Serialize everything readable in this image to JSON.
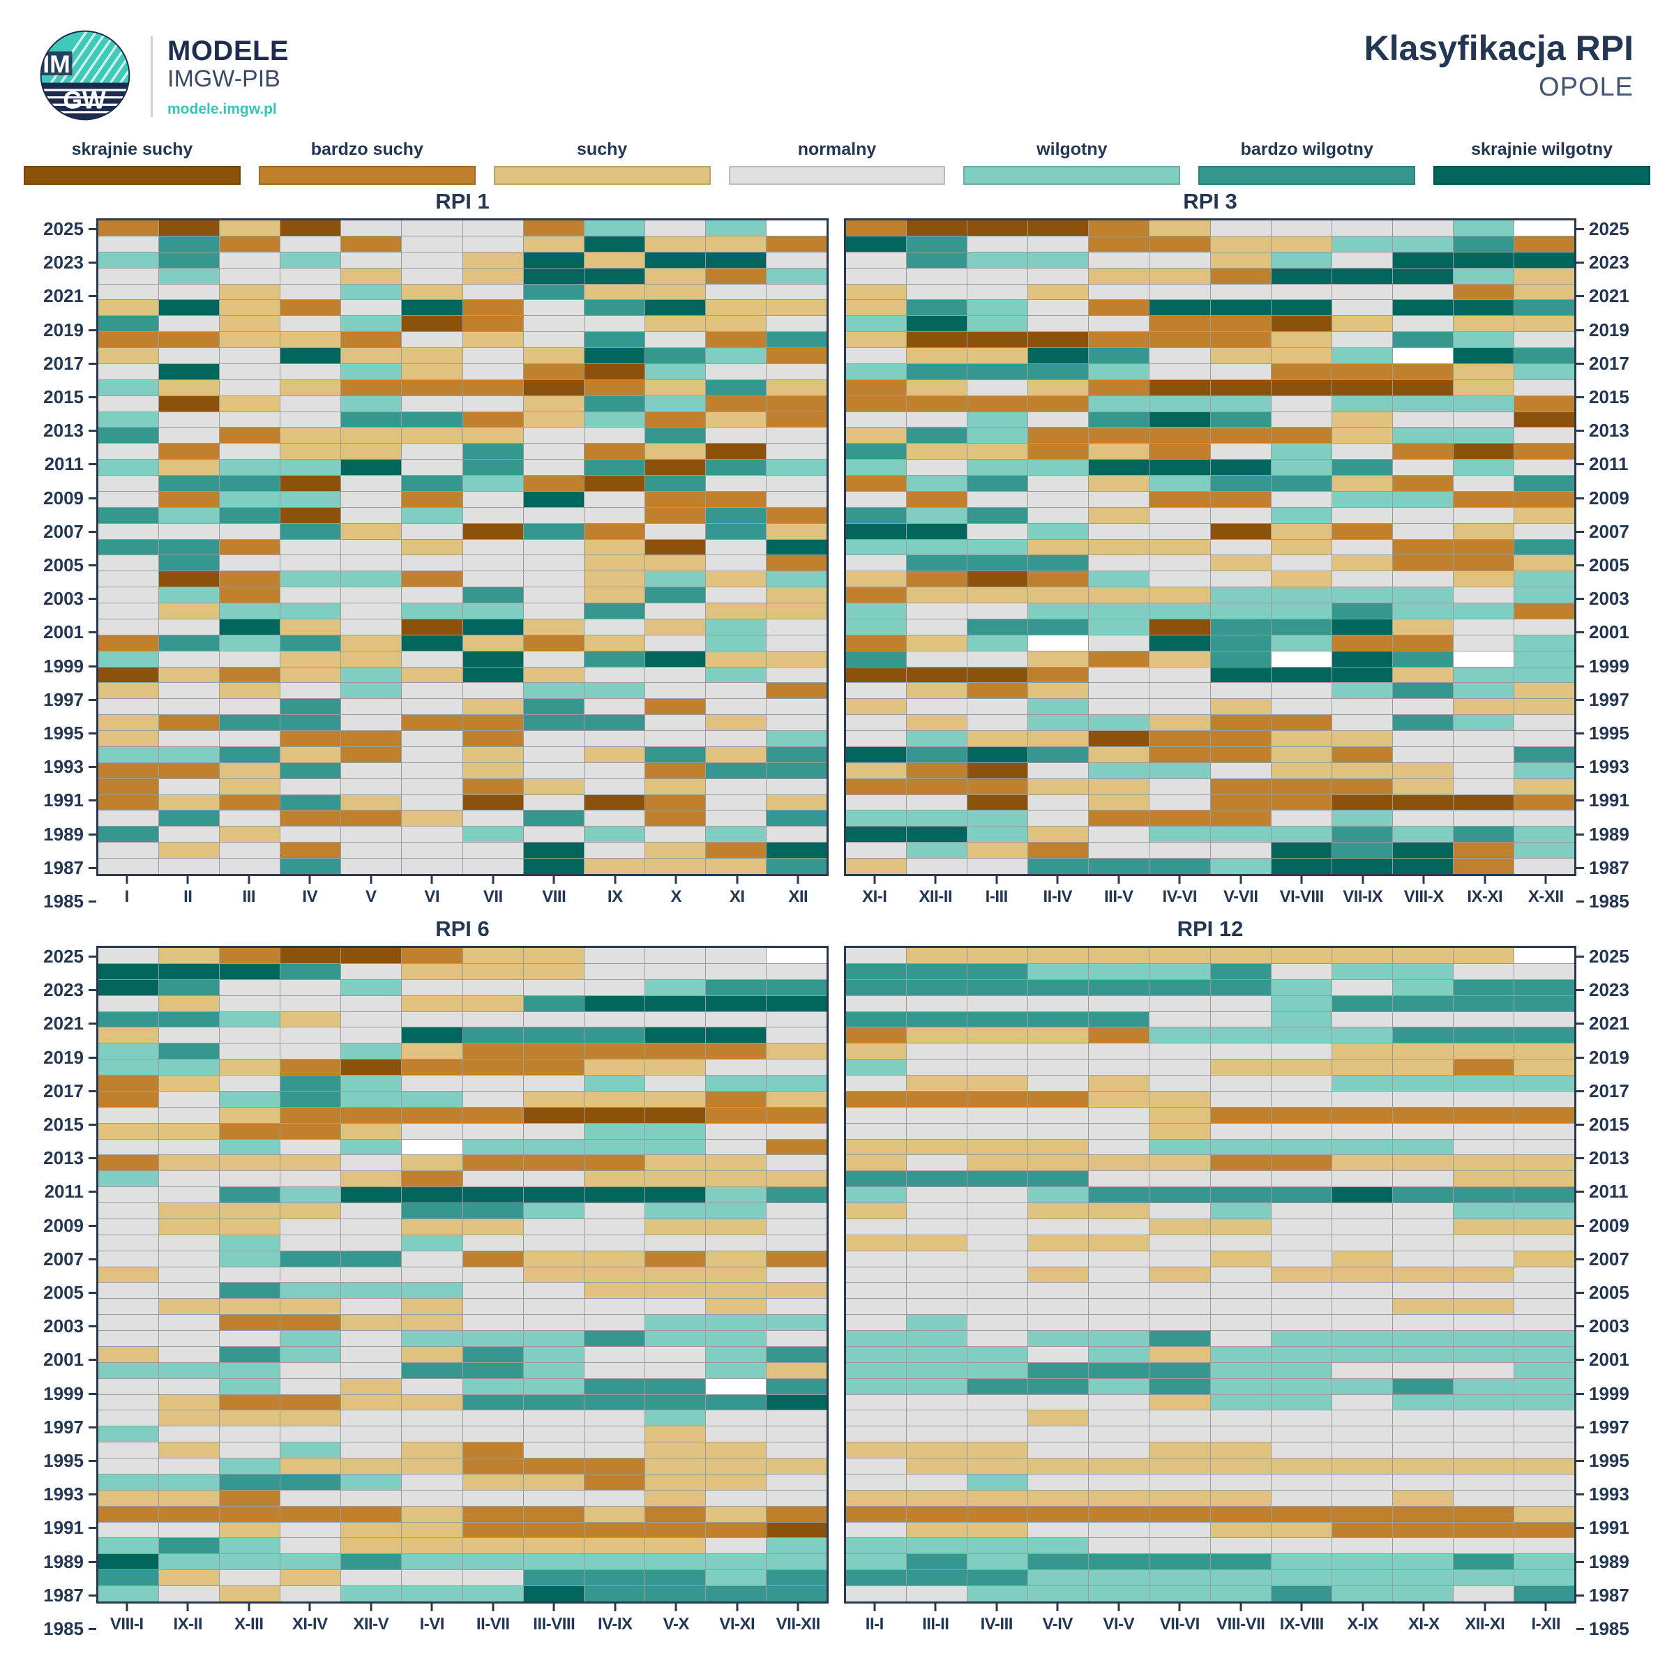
{
  "header": {
    "logo": {
      "line1": "IM",
      "line2": "GW"
    },
    "brand_title": "MODELE",
    "brand_subtitle": "IMGW-PIB",
    "brand_url": "modele.imgw.pl",
    "title": "Klasyfikacja RPI",
    "subtitle": "OPOLE"
  },
  "legend": {
    "items": [
      {
        "code": "D3",
        "label": "skrajnie suchy",
        "color": "#8C510A"
      },
      {
        "code": "D2",
        "label": "bardzo suchy",
        "color": "#BF812D"
      },
      {
        "code": "D1",
        "label": "suchy",
        "color": "#DFC27D"
      },
      {
        "code": "N",
        "label": "normalny",
        "color": "#E0E0E0"
      },
      {
        "code": "W1",
        "label": "wilgotny",
        "color": "#80CDC1"
      },
      {
        "code": "W2",
        "label": "bardzo wilgotny",
        "color": "#35978F"
      },
      {
        "code": "W3",
        "label": "skrajnie wilgotny",
        "color": "#01665E"
      }
    ]
  },
  "chart_data": {
    "type": "heatmap",
    "title": "Klasyfikacja RPI",
    "location": "OPOLE",
    "missing": {
      "code": "X",
      "color": "#FFFFFF"
    },
    "years_top_to_bottom": [
      2025,
      2024,
      2023,
      2022,
      2021,
      2020,
      2019,
      2018,
      2017,
      2016,
      2015,
      2014,
      2013,
      2012,
      2011,
      2010,
      2009,
      2008,
      2007,
      2006,
      2005,
      2004,
      2003,
      2002,
      2001,
      2000,
      1999,
      1998,
      1997,
      1996,
      1995,
      1994,
      1993,
      1992,
      1991,
      1990,
      1989,
      1988,
      1987,
      1986,
      1985
    ],
    "year_tick_labels": [
      2025,
      2023,
      2021,
      2019,
      2017,
      2015,
      2013,
      2011,
      2009,
      2007,
      2005,
      2003,
      2001,
      1999,
      1997,
      1995,
      1993,
      1991,
      1989,
      1987,
      1985
    ],
    "panels": [
      {
        "title": "RPI 1",
        "x_labels": [
          "I",
          "II",
          "III",
          "IV",
          "V",
          "VI",
          "VII",
          "VIII",
          "IX",
          "X",
          "XI",
          "XII"
        ],
        "rows": [
          "D2 D3 D1 D3 N N N D2 W1 N W1 X",
          "N W2 D2 N D2 N N D1 W3 D1 D1 D2",
          "W1 W2 N W1 N N D1 W3 D1 W3 W3 N",
          "N W1 N N D1 N D1 W3 W3 D1 D2 W1",
          "N N D1 N W1 D1 N W2 D1 D1 N N",
          "D1 W3 D1 D2 N W3 D2 N W2 W3 D1 D1",
          "W2 N D1 N W1 D3 D2 N N D1 D1 N",
          "D2 D2 D1 D1 D2 N D1 N W2 N D2 W2",
          "D1 N N W3 D1 D1 N D1 W3 W2 W1 D2",
          "N W3 N N W1 D1 N D2 D3 W1 N N",
          "W1 D1 N D1 D2 D2 D2 D3 D2 D1 W2 D1",
          "N D3 D1 N W1 N N D1 W2 W1 D2 D2",
          "W1 N N N W2 W2 D2 D1 W1 D2 D1 D2",
          "W2 N D2 D1 D1 D1 D1 N N W2 N N",
          "N D2 N D1 D1 N W2 N D2 D1 D3 N",
          "W1 D1 W1 W1 W3 N W2 N W2 D3 W2 W1",
          "N W2 W2 D3 N W2 W1 D2 D3 W2 N N",
          "N D2 W1 W1 N D2 N W3 N D2 D2 N",
          "W2 W1 W2 D3 N W1 N N N D2 W2 D2",
          "N N N W2 D1 N D3 W2 D2 N W2 D1",
          "W2 W2 D2 N N D1 N N D1 D3 N W3",
          "N W2 N N N N N N D1 D1 N D2",
          "N D3 D2 W1 W1 D2 N N D1 W1 D1 W1",
          "N W1 D2 N N N W2 N D1 W2 N D1",
          "N D1 W1 W1 N W1 W1 N W2 N D1 D1",
          "N N W3 D1 N D3 W3 D1 N D1 W1 N",
          "D2 W2 W1 W2 D1 W3 D1 D2 D1 N W1 N",
          "W1 N N D1 D1 N W3 N W2 W3 D1 D1",
          "D3 D1 D2 D1 W1 D1 W3 D1 N N W1 N",
          "D1 N D1 N W1 N N W1 W1 N N D2",
          "N N N W2 N N D1 W2 N D2 N N",
          "D1 D2 W2 W2 N D2 D2 W2 W2 N D1 N",
          "D1 N N D2 D2 N D2 N N N N W1",
          "W1 W1 W2 D1 D2 N D1 N D1 W2 D1 W2",
          "D2 D2 D1 W2 N N D1 N N D2 W2 W2",
          "D2 N D1 N N N D2 D1 N D1 N N",
          "D2 D1 D2 W2 D1 N D3 N D3 D2 N D1",
          "N W2 N D2 D2 D1 N W2 N D2 N W2",
          "W2 N D1 N N N W1 N W1 N W1 N",
          "N D1 N D2 N N N W3 N D1 D2 W3",
          "N N N W2 N N N W3 D1 D1 D1 W2"
        ]
      },
      {
        "title": "RPI 3",
        "x_labels": [
          "XI-I",
          "XII-II",
          "I-III",
          "II-IV",
          "III-V",
          "IV-VI",
          "V-VII",
          "VI-VIII",
          "VII-IX",
          "VIII-X",
          "IX-XI",
          "X-XII"
        ],
        "rows": [
          "D2 D3 D3 D3 D2 D1 N N N N W1 X",
          "W3 W2 N N D2 D2 D1 D1 W1 W1 W2 D2",
          "N W2 W1 W1 N N D1 W1 N W3 W3 W3",
          "N N N N D1 D1 D2 W3 W3 W3 W1 D1",
          "D1 N N D1 N N N N N N D2 D1",
          "D1 W2 W1 N D2 W3 W3 W3 N W3 W3 W2",
          "W1 W3 W1 N N D2 D2 D3 D1 N D1 D1",
          "D1 D3 D3 D3 D2 D2 D2 D1 N W2 W1 N",
          "N D1 D1 W3 W2 N D1 D1 W1 X W3 W2",
          "W1 W2 W2 W2 W1 N N D2 D2 D2 D1 W1",
          "D2 D1 N D1 D2 D3 D3 D3 D3 D3 D1 N",
          "D2 D2 D2 D2 W1 W1 W1 N W1 W1 W1 D2",
          "N N W1 N W2 W3 W2 N D1 N N D3",
          "D1 W2 W1 D2 D2 D2 D2 D2 D1 W1 W1 N",
          "W2 D1 D1 D2 D1 D2 N W1 N D2 D3 D2",
          "W1 N W1 W1 W3 W3 W3 W1 W2 N W1 N",
          "D2 W1 W2 N D1 W1 W2 W2 D1 D2 N W2",
          "N D2 N N N D2 D2 N W1 W1 D2 D2",
          "W2 W1 W2 N D1 N N W1 N N N D1",
          "W3 W3 N W1 N N D3 D1 D2 N D1 N",
          "W1 W1 W1 D1 D1 D1 N D1 N D2 D2 W2",
          "N W2 W2 W2 N N D1 N D1 D2 D2 D1",
          "D1 D2 D3 D2 W1 N N D1 N N D1 W1",
          "D2 D1 D1 D1 D1 D1 W1 W1 W1 W1 N W1",
          "W1 N N W1 W1 W1 W1 W1 W2 W1 W1 D2",
          "W1 N W2 W2 W1 D3 W2 W2 W3 D1 N N",
          "D2 D1 W1 X N W3 W2 W1 D2 D2 N W1",
          "W2 N N D1 D2 D1 W2 X W3 W2 X W1",
          "D3 D3 D3 D2 N N W3 W3 W3 D1 W1 W1",
          "N D1 D2 D1 N N N N W1 W2 W1 D1",
          "D1 N N W1 N N D1 N N N D1 D1",
          "N D1 N W1 W1 D1 D2 D2 N W2 W1 N",
          "N W1 D1 D1 D3 D2 D2 D1 D1 N N N",
          "W3 W2 W3 W2 D1 D2 D2 D1 D2 N N W2",
          "D1 D2 D3 N W1 W1 N D1 D1 D1 N W1",
          "D2 D2 D2 D1 D1 N D2 D2 D2 D1 N D1",
          "N N D3 N D1 N D2 D2 D3 D3 D3 D2",
          "W1 W1 W1 N D2 D2 D2 N W1 N N N",
          "W3 W3 W1 D1 N W1 W1 W1 W2 W1 W2 W1",
          "N W1 D1 D2 N N N W3 W2 W3 D2 W1",
          "D1 N N W2 W2 W2 W1 W3 W3 W3 D2 N"
        ]
      },
      {
        "title": "RPI 6",
        "x_labels": [
          "VIII-I",
          "IX-II",
          "X-III",
          "XI-IV",
          "XII-V",
          "I-VI",
          "II-VII",
          "III-VIII",
          "IV-IX",
          "V-X",
          "VI-XI",
          "VII-XII"
        ],
        "rows": [
          "N D1 D2 D3 D3 D2 D1 D1 N N N X",
          "W3 W3 W3 W2 N D1 D1 D1 N N N N",
          "W3 W2 N N W1 N N N N W1 W2 W2",
          "N D1 N N N D1 D1 W2 W3 W3 W3 W3",
          "W2 W2 W1 D1 N N N N N N N N",
          "D1 N N N N W3 W2 W2 W2 W3 W3 N",
          "W1 W2 N N W1 D1 D2 D2 D2 D2 D2 D1",
          "W1 W1 D1 D2 D3 D2 D2 D2 D1 D1 N N",
          "D2 D1 N W2 W1 N N N W1 N W1 W1",
          "D2 N W1 W2 W1 W1 N D1 D1 D1 D2 D1",
          "N N D1 D2 D2 D2 D2 D3 D3 D3 D2 D2",
          "D1 D1 D2 D2 D1 N N N W1 W1 N N",
          "N N W1 N W1 X W1 W1 W1 W1 N D2",
          "D2 D1 D1 D1 N D1 D2 D2 D2 D1 D1 N",
          "W1 N N N D1 D2 N N D1 D1 D1 D1",
          "N N W2 W1 W3 W3 W3 W3 W3 W3 W1 W2",
          "N D1 D1 D1 N W2 W2 W1 N W1 W1 N",
          "N D1 D1 N N D1 D1 N N D1 D1 N",
          "N N W1 N N W1 N N N N N N",
          "N N W1 W2 W2 N D2 D1 D1 D2 D1 D2",
          "D1 N N N N N N D1 D1 D1 D1 N",
          "N N W2 W1 W1 W1 N N D1 D1 D1 D1",
          "N D1 D1 D1 N D1 N N N N D1 N",
          "N N D2 D2 D1 D1 N N N W1 W1 W1",
          "N N N W1 N W1 W1 W1 W2 W1 W1 N",
          "D1 N W2 W1 N D1 W2 W1 N N W1 W2",
          "W1 W1 W1 N N W2 W2 W1 N N W1 D1",
          "N N W1 N D1 N W1 W1 W2 W2 X W2",
          "N D1 D2 D2 D1 D1 W2 W2 W2 W2 W2 W3",
          "N D1 D1 D1 N N N N N W1 N N",
          "W1 N N N N N N N N D1 N N",
          "N D1 N W1 N D1 D2 N N D1 D1 N",
          "N N W1 D1 D1 D1 D2 D2 D2 D1 D1 D1",
          "W1 W1 W2 W2 W1 N D1 D1 D2 D1 D1 N",
          "D1 D1 D2 N N N N N N D1 N N",
          "D2 D2 D2 D2 D2 D1 D2 D2 D1 D2 D1 D2",
          "N N D1 N D1 D1 D2 D2 D2 D2 D2 D3",
          "W1 W2 W1 N D1 D1 D1 D1 D1 D1 N W1",
          "W3 W1 W1 W1 W2 W1 W1 W1 W1 W1 W1 W1",
          "W2 D1 N D1 N N N W2 W2 W2 W1 W2",
          "W1 N D1 N W1 W1 W1 W3 W2 W2 W2 W2"
        ]
      },
      {
        "title": "RPI 12",
        "x_labels": [
          "II-I",
          "III-II",
          "IV-III",
          "V-IV",
          "VI-V",
          "VII-VI",
          "VIII-VII",
          "IX-VIII",
          "X-IX",
          "XI-X",
          "XII-XI",
          "I-XII"
        ],
        "rows": [
          "N D1 D1 D1 D1 D1 D1 D1 D1 D1 D1 X",
          "W2 W2 W2 W1 W1 W1 W2 N W1 W1 N N",
          "W2 W2 W2 W2 W2 W2 W2 W1 N W1 W2 W2",
          "N N N N N N N W1 W2 W2 W2 W2",
          "W2 W2 W2 W2 W2 N N W1 N N N N",
          "D2 D1 D1 D1 D2 W1 W1 W1 W1 W2 W2 W2",
          "D1 N N N N N N N D1 D1 D1 D1",
          "W1 N N N N N D1 D1 D1 D1 D2 D1",
          "N D1 D1 N D1 N N N W1 W1 W1 W1",
          "D2 D2 D2 D2 D1 D1 N N N N N N",
          "N N N N N D1 D2 D2 D2 D2 D2 D2",
          "N N N N N D1 N N N N N N",
          "D1 D1 D1 D1 N W1 W1 W1 W1 W1 N N",
          "D1 N D1 D1 D1 D1 D2 D2 D1 D1 D1 D1",
          "W2 W2 W2 W2 N N N N N N D1 D1",
          "W1 N N W1 W2 W2 W2 W2 W3 W2 W2 W2",
          "D1 N N D1 D1 N W1 N N N W1 W1",
          "N N N N N D1 D1 N N N D1 D1",
          "D1 D1 N D1 D1 N N N N N N N",
          "N N N N N N D1 N D1 N N D1",
          "N N N D1 N D1 N D1 D1 D1 D1 N",
          "N N N N N N N N N N N N",
          "N N N N N N N N N D1 D1 N",
          "N W1 N N N N N N N N N N",
          "W1 W1 N W1 W1 W2 N W1 W1 W1 W1 W1",
          "W1 W1 W1 N W1 D1 W1 W1 W1 W1 W1 W1",
          "W1 W1 W1 W2 W2 W2 W1 W1 N N N W1",
          "W1 W1 W2 W2 W1 W2 W1 W1 W1 W2 W1 W1",
          "N N N N N D1 W1 W1 N W1 W1 W1",
          "N N N D1 N N N N N N N N",
          "N N N N N N N N N N N N",
          "D1 D1 D1 N N D1 D1 N N N N N",
          "N D1 D1 D1 D1 D1 D1 D1 D1 D1 D1 D1",
          "N N W1 N N N N N N N N N",
          "D1 D1 D1 D1 D1 D1 D1 N N D1 N N",
          "D2 D2 D2 D2 D2 D2 D2 D2 D2 D2 D2 D1",
          "N D1 D1 N N N D1 D1 D2 D2 D2 D2",
          "W1 W1 W1 W1 N N N N N N N N",
          "W1 W2 W1 W2 W2 W2 W2 W1 W1 W1 W2 W1",
          "W2 W2 W2 W1 W1 W1 W1 W1 W1 W1 W1 W1",
          "N N W1 W1 W1 W1 W1 W2 W1 W1 N W2"
        ]
      }
    ]
  }
}
